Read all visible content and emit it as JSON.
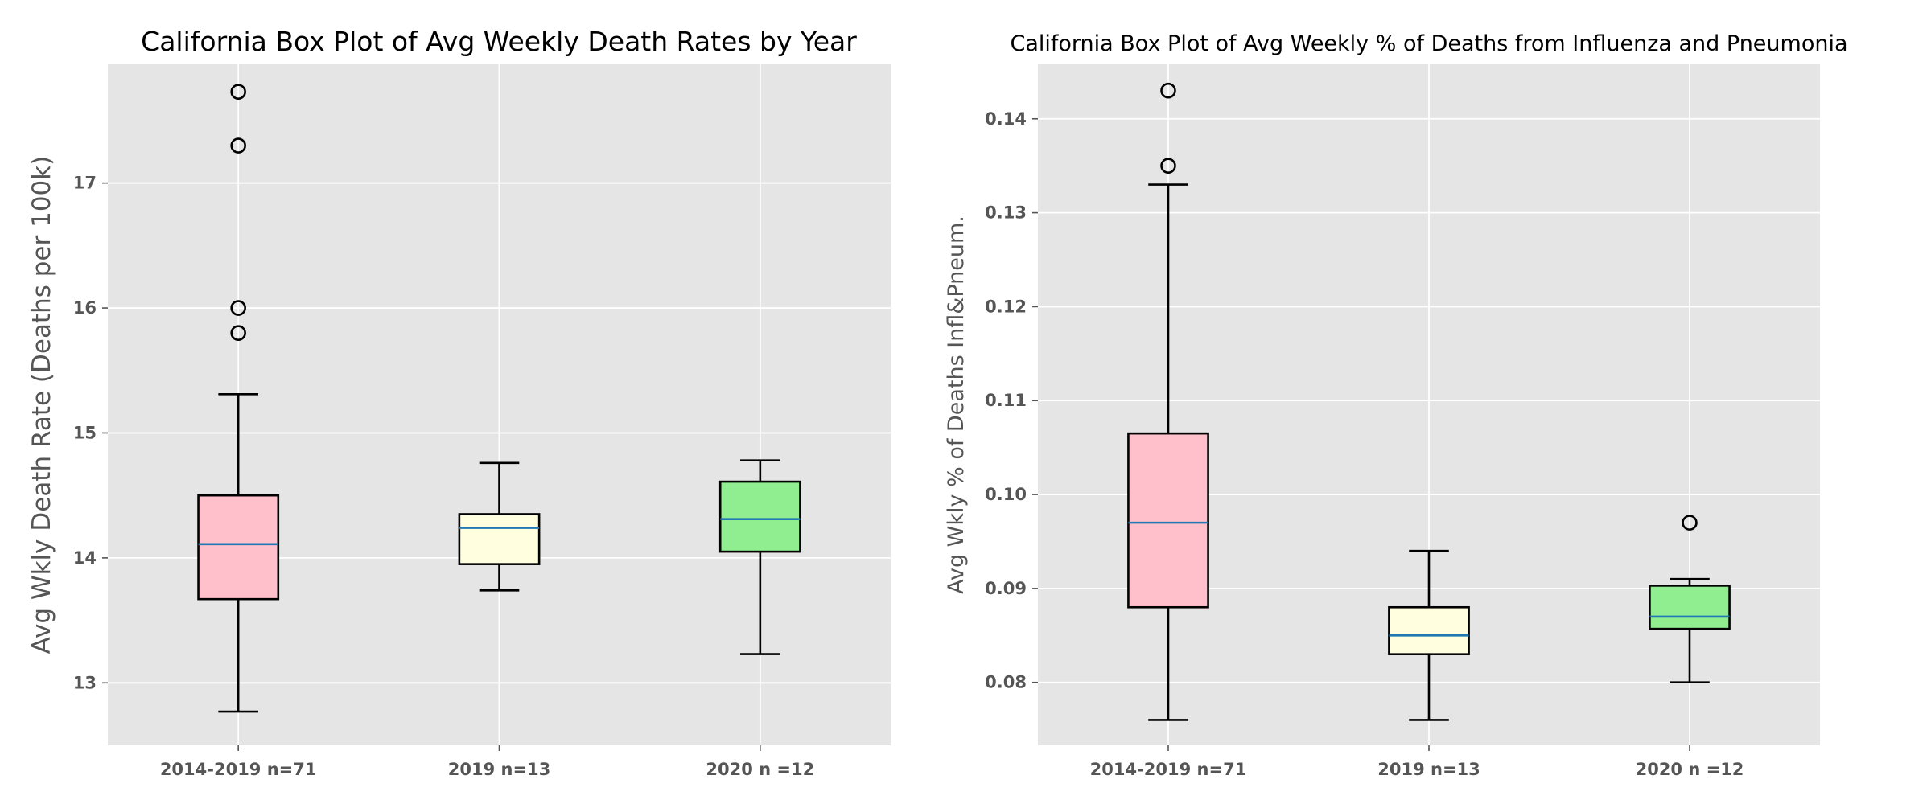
{
  "chart_data": [
    {
      "type": "box",
      "title": "California Box Plot of Avg Weekly Death Rates by Year",
      "xlabel": "",
      "ylabel": "Avg Wkly Death Rate (Deaths per 100k)",
      "categories": [
        "2014-2019 n=71",
        "2019 n=13",
        "2020 n =12"
      ],
      "ylim": [
        12.5,
        17.95
      ],
      "yticks": [
        13,
        14,
        15,
        16,
        17
      ],
      "tick_format": "int",
      "grid": true,
      "boxes": [
        {
          "category": "2014-2019 n=71",
          "whisker_low": 12.77,
          "q1": 13.67,
          "median": 14.11,
          "q3": 14.5,
          "whisker_high": 15.31,
          "outliers": [
            15.8,
            16.0,
            17.3,
            17.73
          ],
          "color": "#ffc0cb"
        },
        {
          "category": "2019 n=13",
          "whisker_low": 13.74,
          "q1": 13.95,
          "median": 14.24,
          "q3": 14.35,
          "whisker_high": 14.76,
          "outliers": [],
          "color": "#ffffe0"
        },
        {
          "category": "2020 n =12",
          "whisker_low": 13.23,
          "q1": 14.05,
          "median": 14.31,
          "q3": 14.61,
          "whisker_high": 14.78,
          "outliers": [],
          "color": "#90ee90"
        }
      ],
      "median_color": "#1f77b4"
    },
    {
      "type": "box",
      "title": "California Box Plot of Avg Weekly % of Deaths from Influenza and Pneumonia",
      "xlabel": "",
      "ylabel": "Avg Wkly % of Deaths Infl&Pneum.",
      "categories": [
        "2014-2019 n=71",
        "2019 n=13",
        "2020 n =12"
      ],
      "ylim": [
        0.0733,
        0.1458
      ],
      "yticks": [
        0.08,
        0.09,
        0.1,
        0.11,
        0.12,
        0.13,
        0.14
      ],
      "tick_format": "2dp",
      "grid": true,
      "boxes": [
        {
          "category": "2014-2019 n=71",
          "whisker_low": 0.076,
          "q1": 0.088,
          "median": 0.097,
          "q3": 0.1065,
          "whisker_high": 0.133,
          "outliers": [
            0.135,
            0.143
          ],
          "color": "#ffc0cb"
        },
        {
          "category": "2019 n=13",
          "whisker_low": 0.076,
          "q1": 0.083,
          "median": 0.085,
          "q3": 0.088,
          "whisker_high": 0.094,
          "outliers": [],
          "color": "#ffffe0"
        },
        {
          "category": "2020 n =12",
          "whisker_low": 0.08,
          "q1": 0.0857,
          "median": 0.087,
          "q3": 0.0903,
          "whisker_high": 0.091,
          "outliers": [
            0.097
          ],
          "color": "#90ee90"
        }
      ],
      "median_color": "#1f77b4"
    }
  ]
}
